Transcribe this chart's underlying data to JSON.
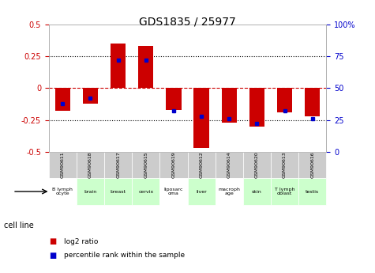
{
  "title": "GDS1835 / 25977",
  "samples": [
    "GSM90611",
    "GSM90618",
    "GSM90617",
    "GSM90615",
    "GSM90619",
    "GSM90612",
    "GSM90614",
    "GSM90620",
    "GSM90613",
    "GSM90616"
  ],
  "cell_lines": [
    "B lymph\nocyte",
    "brain",
    "breast",
    "cervix",
    "liposarc\noma",
    "liver",
    "macroph\nage",
    "skin",
    "T lymph\noblast",
    "testis"
  ],
  "cell_colors": [
    "#ffffff",
    "#ccffcc",
    "#ccffcc",
    "#ccffcc",
    "#ffffff",
    "#ccffcc",
    "#ffffff",
    "#ccffcc",
    "#ccffcc",
    "#ccffcc"
  ],
  "log2_ratio": [
    -0.18,
    -0.12,
    0.35,
    0.33,
    -0.17,
    -0.47,
    -0.27,
    -0.3,
    -0.19,
    -0.22
  ],
  "percentile_rank": [
    38,
    42,
    72,
    72,
    32,
    28,
    26,
    22,
    32,
    26
  ],
  "bar_color": "#cc0000",
  "marker_color": "#0000cc",
  "ylim_left": [
    -0.5,
    0.5
  ],
  "ylim_right": [
    0,
    100
  ],
  "yticks_left": [
    -0.5,
    -0.25,
    0,
    0.25,
    0.5
  ],
  "yticks_right": [
    0,
    25,
    50,
    75,
    100
  ],
  "hline_color": "#cc0000",
  "dotline_color": "#000000",
  "bg_color": "#ffffff",
  "plot_bg": "#ffffff",
  "sample_bg": "#cccccc",
  "cell_line_label": "cell line",
  "legend_red": "log2 ratio",
  "legend_blue": "percentile rank within the sample"
}
